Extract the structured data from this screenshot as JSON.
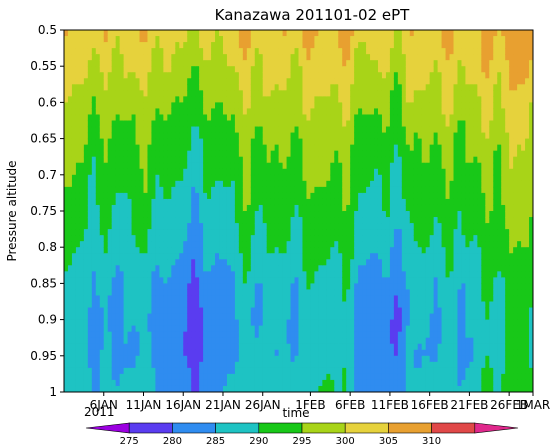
{
  "chart_data": {
    "type": "heatmap",
    "title": "Kanazawa 201101-02 ePT",
    "xlabel": "time",
    "ylabel": "Pressure altitude",
    "ylim": [
      1,
      0.5
    ],
    "y_ticks": [
      "0.5",
      "0.55",
      "0.6",
      "0.65",
      "0.7",
      "0.75",
      "0.8",
      "0.85",
      "0.9",
      "0.95",
      "1"
    ],
    "y_tick_values": [
      0.5,
      0.55,
      0.6,
      0.65,
      0.7,
      0.75,
      0.8,
      0.85,
      0.9,
      0.95,
      1.0
    ],
    "x_ticks": [
      "6JAN",
      "11JAN",
      "16JAN",
      "21JAN",
      "26JAN",
      "1FEB",
      "6FEB",
      "11FEB",
      "16FEB",
      "21FEB",
      "26FEB",
      "1MAR"
    ],
    "x_tick_dates": [
      "2011-01-06",
      "2011-01-11",
      "2011-01-16",
      "2011-01-21",
      "2011-01-26",
      "2011-02-01",
      "2011-02-06",
      "2011-02-11",
      "2011-02-16",
      "2011-02-21",
      "2011-02-26",
      "2011-03-01"
    ],
    "x_range": [
      "2011-01-01",
      "2011-03-01"
    ],
    "x_sublabel": "2011",
    "colorbar": {
      "levels": [
        275,
        280,
        285,
        290,
        295,
        300,
        305,
        310
      ],
      "labels": [
        "275",
        "280",
        "285",
        "290",
        "295",
        "300",
        "305",
        "310"
      ],
      "colors": [
        "#9b00e0",
        "#5a3cf0",
        "#2f8cf0",
        "#1ec3c3",
        "#18c818",
        "#a8d418",
        "#e6d23c",
        "#e8a030",
        "#e04848",
        "#e0288c"
      ]
    },
    "profile_by_pressure": {
      "pressure": [
        0.5,
        0.55,
        0.6,
        0.65,
        0.7,
        0.75,
        0.8,
        0.85,
        0.9,
        0.95,
        1.0
      ],
      "typical_ept": [
        302,
        299,
        296,
        293,
        291,
        289,
        287,
        284,
        283,
        283,
        285
      ]
    }
  }
}
